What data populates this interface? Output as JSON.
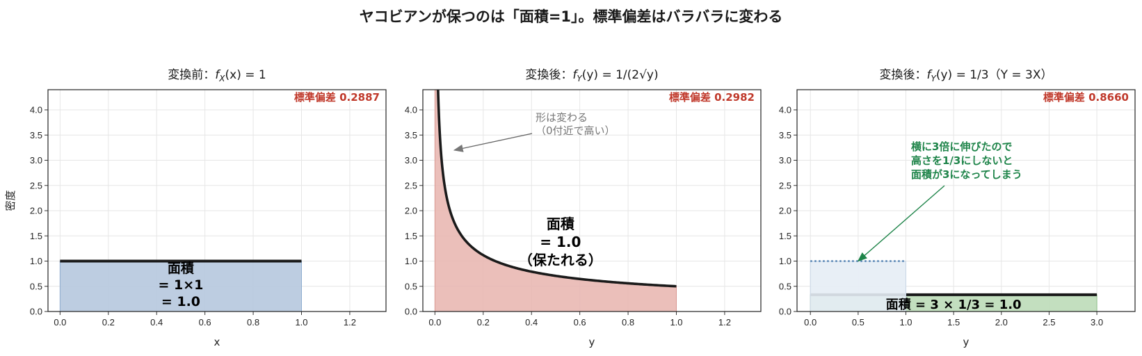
{
  "figure_title": "ヤコビアンが保つのは「面積=1」。標準偏差はバラバラに変わる",
  "chart_data": [
    {
      "type": "area",
      "title": "変換前：f_X(x) = 1",
      "title_parts": [
        "変換前：",
        "f",
        "X",
        "(x) = 1"
      ],
      "xlabel": "x",
      "ylabel": "密度",
      "xlim": [
        -0.05,
        1.35
      ],
      "ylim": [
        0,
        4.4
      ],
      "xticks": [
        "0.0",
        "0.2",
        "0.4",
        "0.6",
        "0.8",
        "1.0",
        "1.2"
      ],
      "yticks": [
        "0.0",
        "0.5",
        "1.0",
        "1.5",
        "2.0",
        "2.5",
        "3.0",
        "3.5",
        "4.0"
      ],
      "grid": true,
      "series": [
        {
          "x": [
            0,
            1
          ],
          "y": [
            1,
            1
          ],
          "fill_color": "#b6c8de",
          "line_color": "#1a1a1a"
        }
      ],
      "std_label": "標準偏差 0.2887",
      "std_color": "#c0392b",
      "area_label": [
        "面積",
        "= 1×1",
        "= 1.0"
      ]
    },
    {
      "type": "area",
      "title": "変換後：f_Y(y) = 1/(2√y)",
      "title_parts": [
        "変換後：",
        "f",
        "Y",
        "(y) = 1/(2√y)"
      ],
      "xlabel": "y",
      "ylabel": "",
      "xlim": [
        -0.05,
        1.35
      ],
      "ylim": [
        0,
        4.4
      ],
      "xticks": [
        "0.0",
        "0.2",
        "0.4",
        "0.6",
        "0.8",
        "1.0",
        "1.2"
      ],
      "yticks": [
        "0.0",
        "0.5",
        "1.0",
        "1.5",
        "2.0",
        "2.5",
        "3.0",
        "3.5",
        "4.0"
      ],
      "grid": true,
      "series": [
        {
          "function": "1/(2*sqrt(y))",
          "domain": [
            0,
            1
          ],
          "fill_color": "#e8b4ae",
          "line_color": "#1a1a1a"
        }
      ],
      "std_label": "標準偏差 0.2982",
      "std_color": "#c0392b",
      "area_label": [
        "面積",
        "= 1.0",
        "（保たれる）"
      ],
      "annotation": {
        "text": [
          "形は変わる",
          "（0付近で高い）"
        ],
        "color": "#777777",
        "point": [
          0.08,
          3.2
        ]
      }
    },
    {
      "type": "area",
      "title": "変換後：f_Y(y) = 1/3（Y = 3X）",
      "title_parts": [
        "変換後：",
        "f",
        "Y",
        "(y) = 1/3（Y = 3X）"
      ],
      "xlabel": "y",
      "ylabel": "",
      "xlim": [
        -0.14,
        3.4
      ],
      "ylim": [
        0,
        4.4
      ],
      "xticks": [
        "0.0",
        "0.5",
        "1.0",
        "1.5",
        "2.0",
        "2.5",
        "3.0"
      ],
      "yticks": [
        "0.0",
        "0.5",
        "1.0",
        "1.5",
        "2.0",
        "2.5",
        "3.0",
        "3.5",
        "4.0"
      ],
      "grid": true,
      "series": [
        {
          "x": [
            0,
            3
          ],
          "y": [
            0.3333,
            0.3333
          ],
          "fill_color": "#bcdcb8",
          "line_color": "#1a1a1a"
        },
        {
          "x": [
            0,
            1
          ],
          "y": [
            1,
            1
          ],
          "fill_color": "#e6edf5",
          "line_color": "#4f7fb0",
          "dotted": true
        }
      ],
      "std_label": "標準偏差 0.8660",
      "std_color": "#c0392b",
      "area_label": [
        "面積 = 3 × 1/3 = 1.0"
      ],
      "annotation": {
        "text": [
          "横に3倍に伸びたので",
          "高さを1/3にしないと",
          "面積が3になってしまう"
        ],
        "color": "#1e8449",
        "point": [
          0.5,
          1.0
        ]
      }
    }
  ]
}
